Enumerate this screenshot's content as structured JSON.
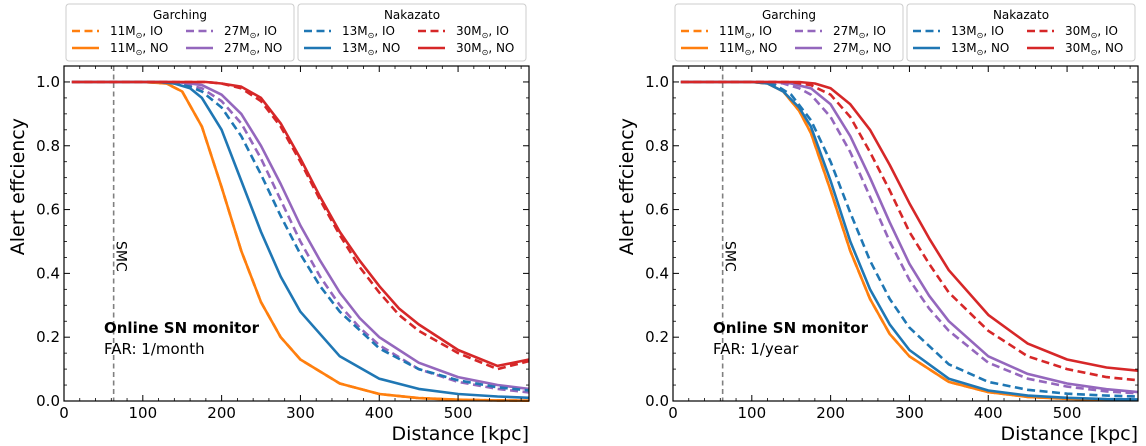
{
  "chart_data": [
    {
      "type": "line",
      "xlabel": "Distance [kpc]",
      "ylabel": "Alert effciency",
      "xlim": [
        0,
        590
      ],
      "ylim": [
        0,
        1.05
      ],
      "xticks": [
        0,
        100,
        200,
        300,
        400,
        500
      ],
      "yticks": [
        0.0,
        0.2,
        0.4,
        0.6,
        0.8,
        1.0
      ],
      "xtick_labels": [
        "0",
        "100",
        "200",
        "300",
        "400",
        "500"
      ],
      "ytick_labels": [
        "0.0",
        "0.2",
        "0.4",
        "0.6",
        "0.8",
        "1.0"
      ],
      "vline": {
        "x": 63,
        "label": "SMC"
      },
      "annotation": {
        "title": "Online SN monitor",
        "subtitle": "FAR: 1/month"
      },
      "legend": {
        "placement": "top",
        "groups": [
          {
            "title": "Garching",
            "entries": [
              {
                "main": "11M",
                "sub": "⊙",
                "tail": ", IO",
                "series": 0
              },
              {
                "main": "27M",
                "sub": "⊙",
                "tail": ", IO",
                "series": 2
              },
              {
                "main": "11M",
                "sub": "⊙",
                "tail": ", NO",
                "series": 1
              },
              {
                "main": "27M",
                "sub": "⊙",
                "tail": ", NO",
                "series": 3
              }
            ]
          },
          {
            "title": "Nakazato",
            "entries": [
              {
                "main": "13M",
                "sub": "⊙",
                "tail": ", IO",
                "series": 4
              },
              {
                "main": "30M",
                "sub": "⊙",
                "tail": ", IO",
                "series": 6
              },
              {
                "main": "13M",
                "sub": "⊙",
                "tail": ", NO",
                "series": 5
              },
              {
                "main": "30M",
                "sub": "⊙",
                "tail": ", NO",
                "series": 7
              }
            ]
          }
        ]
      },
      "series": [
        {
          "name": "11M⊙, IO",
          "color": "#ff7f0e",
          "dash": true,
          "x": [
            10,
            100,
            130,
            150,
            175,
            200,
            225,
            250,
            275,
            300,
            350,
            400,
            450,
            500,
            550,
            590
          ],
          "y": [
            1.0,
            1.0,
            0.995,
            0.97,
            0.86,
            0.67,
            0.47,
            0.31,
            0.2,
            0.13,
            0.055,
            0.022,
            0.009,
            0.004,
            0.002,
            0.001
          ]
        },
        {
          "name": "11M⊙, NO",
          "color": "#ff7f0e",
          "dash": false,
          "x": [
            10,
            100,
            130,
            150,
            175,
            200,
            225,
            250,
            275,
            300,
            350,
            400,
            450,
            500,
            550,
            590
          ],
          "y": [
            1.0,
            1.0,
            0.995,
            0.97,
            0.86,
            0.67,
            0.47,
            0.31,
            0.2,
            0.13,
            0.055,
            0.022,
            0.009,
            0.004,
            0.002,
            0.001
          ]
        },
        {
          "name": "27M⊙, IO",
          "color": "#9467bd",
          "dash": true,
          "x": [
            10,
            130,
            150,
            175,
            200,
            225,
            250,
            275,
            300,
            325,
            350,
            375,
            400,
            450,
            500,
            550,
            590
          ],
          "y": [
            1.0,
            1.0,
            0.995,
            0.98,
            0.94,
            0.87,
            0.76,
            0.63,
            0.5,
            0.39,
            0.3,
            0.23,
            0.175,
            0.1,
            0.06,
            0.038,
            0.027
          ]
        },
        {
          "name": "27M⊙, NO",
          "color": "#9467bd",
          "dash": false,
          "x": [
            10,
            140,
            160,
            175,
            200,
            225,
            250,
            275,
            300,
            325,
            350,
            375,
            400,
            450,
            500,
            550,
            590
          ],
          "y": [
            1.0,
            1.0,
            0.995,
            0.99,
            0.96,
            0.9,
            0.8,
            0.68,
            0.55,
            0.44,
            0.34,
            0.26,
            0.2,
            0.12,
            0.075,
            0.05,
            0.038
          ]
        },
        {
          "name": "13M⊙, IO",
          "color": "#1f77b4",
          "dash": true,
          "x": [
            10,
            120,
            140,
            160,
            175,
            200,
            225,
            250,
            275,
            300,
            325,
            350,
            400,
            450,
            500,
            550,
            590
          ],
          "y": [
            1.0,
            1.0,
            0.995,
            0.985,
            0.97,
            0.92,
            0.83,
            0.71,
            0.58,
            0.46,
            0.36,
            0.28,
            0.165,
            0.1,
            0.065,
            0.043,
            0.033
          ]
        },
        {
          "name": "13M⊙, NO",
          "color": "#1f77b4",
          "dash": false,
          "x": [
            10,
            120,
            140,
            160,
            175,
            200,
            225,
            250,
            275,
            300,
            350,
            400,
            450,
            500,
            550,
            590
          ],
          "y": [
            1.0,
            1.0,
            0.995,
            0.98,
            0.95,
            0.85,
            0.69,
            0.53,
            0.39,
            0.28,
            0.14,
            0.07,
            0.038,
            0.022,
            0.014,
            0.01
          ]
        },
        {
          "name": "30M⊙, IO",
          "color": "#d62728",
          "dash": true,
          "x": [
            10,
            180,
            200,
            225,
            250,
            275,
            300,
            325,
            350,
            375,
            400,
            425,
            450,
            500,
            550,
            590
          ],
          "y": [
            1.0,
            1.0,
            0.995,
            0.98,
            0.94,
            0.86,
            0.75,
            0.63,
            0.52,
            0.42,
            0.34,
            0.27,
            0.22,
            0.15,
            0.1,
            0.125
          ]
        },
        {
          "name": "30M⊙, NO",
          "color": "#d62728",
          "dash": false,
          "x": [
            10,
            180,
            200,
            225,
            250,
            275,
            300,
            325,
            350,
            375,
            400,
            425,
            450,
            500,
            550,
            590
          ],
          "y": [
            1.0,
            1.0,
            0.995,
            0.985,
            0.95,
            0.87,
            0.76,
            0.64,
            0.53,
            0.44,
            0.36,
            0.29,
            0.24,
            0.16,
            0.11,
            0.13
          ]
        }
      ]
    },
    {
      "type": "line",
      "xlabel": "Distance [kpc]",
      "ylabel": "Alert effciency",
      "xlim": [
        0,
        590
      ],
      "ylim": [
        0,
        1.05
      ],
      "xticks": [
        0,
        100,
        200,
        300,
        400,
        500
      ],
      "yticks": [
        0.0,
        0.2,
        0.4,
        0.6,
        0.8,
        1.0
      ],
      "xtick_labels": [
        "0",
        "100",
        "200",
        "300",
        "400",
        "500"
      ],
      "ytick_labels": [
        "0.0",
        "0.2",
        "0.4",
        "0.6",
        "0.8",
        "1.0"
      ],
      "vline": {
        "x": 63,
        "label": "SMC"
      },
      "annotation": {
        "title": "Online SN monitor",
        "subtitle": "FAR: 1/year"
      },
      "legend": {
        "placement": "top",
        "groups": [
          {
            "title": "Garching",
            "entries": [
              {
                "main": "11M",
                "sub": "⊙",
                "tail": ", IO",
                "series": 0
              },
              {
                "main": "27M",
                "sub": "⊙",
                "tail": ", IO",
                "series": 2
              },
              {
                "main": "11M",
                "sub": "⊙",
                "tail": ", NO",
                "series": 1
              },
              {
                "main": "27M",
                "sub": "⊙",
                "tail": ", NO",
                "series": 3
              }
            ]
          },
          {
            "title": "Nakazato",
            "entries": [
              {
                "main": "13M",
                "sub": "⊙",
                "tail": ", IO",
                "series": 4
              },
              {
                "main": "30M",
                "sub": "⊙",
                "tail": ", IO",
                "series": 6
              },
              {
                "main": "13M",
                "sub": "⊙",
                "tail": ", NO",
                "series": 5
              },
              {
                "main": "30M",
                "sub": "⊙",
                "tail": ", NO",
                "series": 7
              }
            ]
          }
        ]
      },
      "series": [
        {
          "name": "11M⊙, IO",
          "color": "#ff7f0e",
          "dash": true,
          "x": [
            10,
            100,
            120,
            140,
            160,
            175,
            200,
            225,
            250,
            275,
            300,
            350,
            400,
            450,
            500,
            550,
            590
          ],
          "y": [
            1.0,
            1.0,
            0.995,
            0.97,
            0.91,
            0.84,
            0.66,
            0.47,
            0.32,
            0.21,
            0.14,
            0.06,
            0.028,
            0.013,
            0.007,
            0.004,
            0.003
          ]
        },
        {
          "name": "11M⊙, NO",
          "color": "#ff7f0e",
          "dash": false,
          "x": [
            10,
            100,
            120,
            140,
            160,
            175,
            200,
            225,
            250,
            275,
            300,
            350,
            400,
            450,
            500,
            550,
            590
          ],
          "y": [
            1.0,
            1.0,
            0.995,
            0.97,
            0.91,
            0.84,
            0.66,
            0.47,
            0.32,
            0.21,
            0.14,
            0.06,
            0.028,
            0.013,
            0.007,
            0.004,
            0.003
          ]
        },
        {
          "name": "27M⊙, IO",
          "color": "#9467bd",
          "dash": true,
          "x": [
            10,
            120,
            140,
            160,
            175,
            200,
            225,
            250,
            275,
            300,
            325,
            350,
            400,
            450,
            500,
            550,
            590
          ],
          "y": [
            1.0,
            1.0,
            0.995,
            0.98,
            0.96,
            0.89,
            0.78,
            0.64,
            0.5,
            0.38,
            0.29,
            0.22,
            0.12,
            0.07,
            0.045,
            0.03,
            0.024
          ]
        },
        {
          "name": "27M⊙, NO",
          "color": "#9467bd",
          "dash": false,
          "x": [
            10,
            130,
            150,
            175,
            200,
            225,
            250,
            275,
            300,
            325,
            350,
            400,
            450,
            500,
            550,
            590
          ],
          "y": [
            1.0,
            1.0,
            0.995,
            0.98,
            0.93,
            0.83,
            0.7,
            0.56,
            0.43,
            0.33,
            0.25,
            0.14,
            0.085,
            0.055,
            0.037,
            0.028
          ]
        },
        {
          "name": "13M⊙, IO",
          "color": "#1f77b4",
          "dash": true,
          "x": [
            10,
            110,
            130,
            150,
            175,
            200,
            225,
            250,
            275,
            300,
            350,
            400,
            450,
            500,
            550,
            590
          ],
          "y": [
            1.0,
            1.0,
            0.99,
            0.96,
            0.88,
            0.75,
            0.59,
            0.44,
            0.32,
            0.23,
            0.115,
            0.06,
            0.035,
            0.023,
            0.017,
            0.014
          ]
        },
        {
          "name": "13M⊙, NO",
          "color": "#1f77b4",
          "dash": false,
          "x": [
            10,
            100,
            120,
            140,
            160,
            175,
            200,
            225,
            250,
            275,
            300,
            350,
            400,
            450,
            500,
            550,
            590
          ],
          "y": [
            1.0,
            1.0,
            0.995,
            0.97,
            0.92,
            0.86,
            0.69,
            0.5,
            0.35,
            0.24,
            0.16,
            0.07,
            0.033,
            0.017,
            0.01,
            0.006,
            0.005
          ]
        },
        {
          "name": "30M⊙, IO",
          "color": "#d62728",
          "dash": true,
          "x": [
            10,
            150,
            175,
            200,
            225,
            250,
            275,
            300,
            325,
            350,
            400,
            450,
            500,
            550,
            590
          ],
          "y": [
            1.0,
            1.0,
            0.99,
            0.96,
            0.89,
            0.78,
            0.66,
            0.53,
            0.43,
            0.34,
            0.22,
            0.14,
            0.1,
            0.075,
            0.065
          ]
        },
        {
          "name": "30M⊙, NO",
          "color": "#d62728",
          "dash": false,
          "x": [
            10,
            160,
            180,
            200,
            225,
            250,
            275,
            300,
            325,
            350,
            400,
            450,
            500,
            550,
            590
          ],
          "y": [
            1.0,
            1.0,
            0.995,
            0.98,
            0.93,
            0.85,
            0.74,
            0.62,
            0.51,
            0.41,
            0.27,
            0.18,
            0.13,
            0.105,
            0.095
          ]
        }
      ]
    }
  ]
}
